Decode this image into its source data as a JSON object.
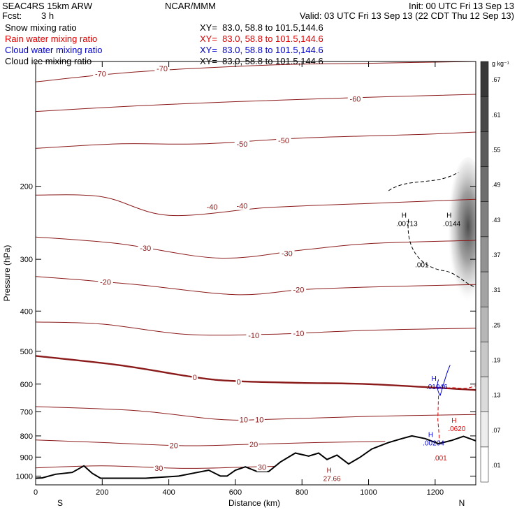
{
  "header": {
    "model": "SEAC4RS 15km ARW",
    "center": "NCAR/MMM",
    "init": "Init: 00 UTC Fri 13 Sep 13",
    "fcst_label": "Fcst:",
    "fcst_value": "3 h",
    "valid": "Valid: 03 UTC Fri 13 Sep 13 (22 CDT Thu 12 Sep 13)"
  },
  "legend": [
    {
      "name": "Snow mixing ratio",
      "xy": "XY=  83.0, 58.8 to 101.5,144.6",
      "color": "#000000"
    },
    {
      "name": "Rain water mixing ratio",
      "xy": "XY=  83.0, 58.8 to 101.5,144.6",
      "color": "#dd0000"
    },
    {
      "name": "Cloud water mixing ratio",
      "xy": "XY=  83.0, 58.8 to 101.5,144.6",
      "color": "#0000cc"
    },
    {
      "name": "Cloud ice mixing ratio",
      "xy": "XY=  83.0, 58.8 to 101.5,144.6",
      "color": "#000000"
    }
  ],
  "chart_data": {
    "type": "contour",
    "xlabel": "Distance (km)",
    "ylabel": "Pressure (hPa)",
    "xlim": [
      0,
      1322
    ],
    "ylim": [
      1050,
      100
    ],
    "y_scale": "log",
    "x_ticks": [
      0,
      200,
      400,
      600,
      800,
      1000,
      1200
    ],
    "y_ticks": [
      200,
      300,
      400,
      500,
      600,
      700,
      800,
      900,
      1000
    ],
    "x_end_labels": {
      "left": "S",
      "right": "N"
    },
    "colorbar": {
      "unit": "g kg⁻¹",
      "ticks": [
        ".01",
        ".07",
        ".13",
        ".19",
        ".25",
        ".31",
        ".37",
        ".43",
        ".49",
        ".55",
        ".61",
        ".67"
      ]
    },
    "temperature_contours": [
      {
        "level": -70,
        "p": [
          [
            0,
            112
          ],
          [
            300,
            106
          ],
          [
            700,
            102
          ],
          [
            1000,
            101
          ],
          [
            1322,
            100
          ]
        ]
      },
      {
        "level": -60,
        "p": [
          [
            0,
            132
          ],
          [
            300,
            128
          ],
          [
            600,
            125
          ],
          [
            1000,
            122
          ],
          [
            1322,
            120
          ]
        ]
      },
      {
        "level": -50,
        "p": [
          [
            0,
            162
          ],
          [
            250,
            158
          ],
          [
            500,
            158
          ],
          [
            800,
            153
          ],
          [
            1150,
            150
          ],
          [
            1322,
            148
          ]
        ]
      },
      {
        "level": -40,
        "p": [
          [
            0,
            210
          ],
          [
            200,
            212
          ],
          [
            400,
            235
          ],
          [
            700,
            225
          ],
          [
            1000,
            220
          ],
          [
            1322,
            215
          ]
        ]
      },
      {
        "level": -30,
        "p": [
          [
            0,
            265
          ],
          [
            250,
            275
          ],
          [
            550,
            298
          ],
          [
            800,
            285
          ],
          [
            1000,
            275
          ],
          [
            1322,
            270
          ]
        ]
      },
      {
        "level": -20,
        "p": [
          [
            0,
            330
          ],
          [
            300,
            345
          ],
          [
            600,
            365
          ],
          [
            800,
            355
          ],
          [
            1000,
            350
          ],
          [
            1322,
            345
          ]
        ]
      },
      {
        "level": -10,
        "p": [
          [
            0,
            425
          ],
          [
            200,
            430
          ],
          [
            450,
            455
          ],
          [
            700,
            455
          ],
          [
            1000,
            445
          ],
          [
            1322,
            440
          ]
        ]
      },
      {
        "level": 0,
        "p": [
          [
            0,
            513
          ],
          [
            250,
            540
          ],
          [
            480,
            578
          ],
          [
            600,
            590
          ],
          [
            800,
            596
          ],
          [
            1000,
            600
          ],
          [
            1322,
            620
          ]
        ]
      },
      {
        "level": 10,
        "p": [
          [
            0,
            680
          ],
          [
            300,
            695
          ],
          [
            550,
            730
          ],
          [
            700,
            730
          ],
          [
            1000,
            718
          ],
          [
            1322,
            710
          ]
        ]
      },
      {
        "level": 20,
        "p": [
          [
            0,
            818
          ],
          [
            200,
            830
          ],
          [
            450,
            845
          ],
          [
            650,
            838
          ],
          [
            850,
            830
          ],
          [
            1050,
            825
          ]
        ]
      },
      {
        "level": 30,
        "p": [
          [
            0,
            955
          ],
          [
            200,
            945
          ],
          [
            450,
            958
          ],
          [
            650,
            950
          ],
          [
            800,
            945
          ]
        ]
      }
    ],
    "contour_labels": [
      {
        "text": "-70",
        "x": 195,
        "p": 107
      },
      {
        "text": "-70",
        "x": 380,
        "p": 104
      },
      {
        "text": "-60",
        "x": 960,
        "p": 123
      },
      {
        "text": "-50",
        "x": 620,
        "p": 158
      },
      {
        "text": "-50",
        "x": 745,
        "p": 155
      },
      {
        "text": "-40",
        "x": 530,
        "p": 224
      },
      {
        "text": "-40",
        "x": 620,
        "p": 223
      },
      {
        "text": "-30",
        "x": 330,
        "p": 282
      },
      {
        "text": "-30",
        "x": 755,
        "p": 290
      },
      {
        "text": "-20",
        "x": 210,
        "p": 340
      },
      {
        "text": "-20",
        "x": 790,
        "p": 355
      },
      {
        "text": "-10",
        "x": 655,
        "p": 458
      },
      {
        "text": "-10",
        "x": 790,
        "p": 452
      },
      {
        "text": "0",
        "x": 478,
        "p": 578
      },
      {
        "text": "0",
        "x": 610,
        "p": 592
      },
      {
        "text": "10",
        "x": 625,
        "p": 730
      },
      {
        "text": "10",
        "x": 672,
        "p": 730
      },
      {
        "text": "20",
        "x": 415,
        "p": 843
      },
      {
        "text": "20",
        "x": 655,
        "p": 838
      },
      {
        "text": "30",
        "x": 370,
        "p": 956
      },
      {
        "text": "30",
        "x": 680,
        "p": 952
      }
    ],
    "maxima_labels": [
      {
        "text": ".00713",
        "x": 1115,
        "p": 241,
        "color": "#000000"
      },
      {
        "text": ".0144",
        "x": 1250,
        "p": 241,
        "color": "#000000"
      },
      {
        "text": ".001",
        "x": 1160,
        "p": 303,
        "color": "#000000"
      },
      {
        "text": ".01046",
        "x": 1205,
        "p": 596,
        "color": "#0000cc"
      },
      {
        "text": ".0620",
        "x": 1265,
        "p": 752,
        "color": "#dd0000"
      },
      {
        "text": ".00204",
        "x": 1195,
        "p": 815,
        "color": "#0000cc"
      },
      {
        "text": ".001",
        "x": 1215,
        "p": 885,
        "color": "#dd0000"
      },
      {
        "text": "27.66",
        "x": 890,
        "p": 992,
        "color": "#8b1a1a"
      }
    ],
    "terrain": [
      [
        0,
        1012
      ],
      [
        20,
        1010
      ],
      [
        60,
        990
      ],
      [
        110,
        980
      ],
      [
        145,
        945
      ],
      [
        170,
        985
      ],
      [
        195,
        1012
      ],
      [
        330,
        1012
      ],
      [
        430,
        1000
      ],
      [
        480,
        982
      ],
      [
        520,
        968
      ],
      [
        555,
        1000
      ],
      [
        575,
        1000
      ],
      [
        600,
        968
      ],
      [
        630,
        950
      ],
      [
        665,
        975
      ],
      [
        700,
        975
      ],
      [
        735,
        925
      ],
      [
        780,
        880
      ],
      [
        820,
        895
      ],
      [
        850,
        880
      ],
      [
        875,
        912
      ],
      [
        905,
        890
      ],
      [
        940,
        935
      ],
      [
        975,
        900
      ],
      [
        1010,
        860
      ],
      [
        1060,
        830
      ],
      [
        1100,
        812
      ],
      [
        1130,
        800
      ],
      [
        1170,
        812
      ],
      [
        1210,
        835
      ],
      [
        1250,
        820
      ],
      [
        1285,
        802
      ],
      [
        1322,
        822
      ]
    ]
  }
}
